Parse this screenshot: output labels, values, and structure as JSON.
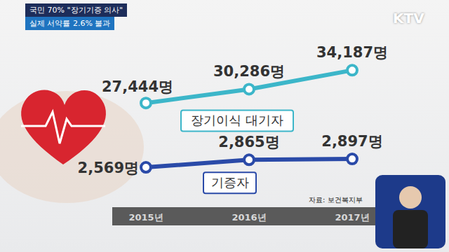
{
  "chart_data": {
    "type": "line",
    "title": "국민 70% \"장기기증 의사\"",
    "subtitle": "실제 서약률 2.6% 불과",
    "categories": [
      "2015년",
      "2016년",
      "2017년"
    ],
    "series": [
      {
        "name": "장기이식 대기자",
        "color": "#3cb6c9",
        "values": [
          27444,
          30286,
          34187
        ],
        "value_labels": [
          "27,444명",
          "30,286명",
          "34,187명"
        ],
        "marker": "circle"
      },
      {
        "name": "기증자",
        "color": "#2a4aa8",
        "values": [
          2569,
          2865,
          2897
        ],
        "value_labels": [
          "2,569명",
          "2,865명",
          "2,897명"
        ],
        "axis": "y2",
        "marker": "circle"
      }
    ],
    "ylim": [
      6000,
      40000
    ],
    "yticks": [
      6000,
      40000
    ],
    "y2lim": [
      1000,
      7500
    ],
    "y2ticks": [
      1000,
      7500
    ],
    "data_labels": true,
    "tick_labels": "x",
    "grid": false,
    "annotations": [
      "자료: 보건복지부",
      "KTV"
    ]
  }
}
